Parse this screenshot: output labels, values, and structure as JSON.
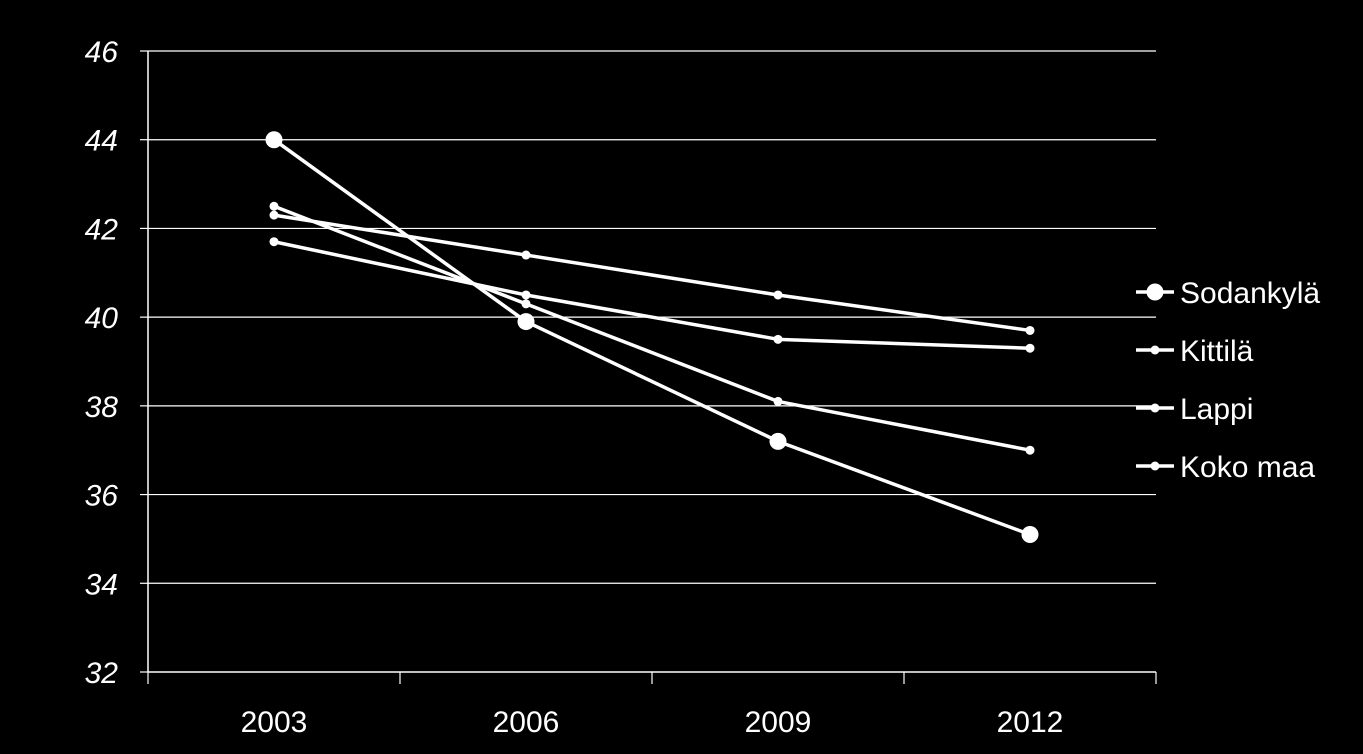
{
  "chart_data": {
    "type": "line",
    "title": "",
    "xlabel": "",
    "ylabel": "",
    "categories": [
      "2003",
      "2006",
      "2009",
      "2012"
    ],
    "ylim": [
      32,
      46
    ],
    "yticks": [
      "32",
      "34",
      "36",
      "38",
      "40",
      "42",
      "44",
      "46"
    ],
    "grid": "horizontal",
    "legend_position": "right",
    "series": [
      {
        "name": "Sodankylä",
        "values": [
          44.0,
          39.9,
          37.2,
          35.1
        ],
        "marker": "large-circle"
      },
      {
        "name": "Kittilä",
        "values": [
          42.3,
          41.4,
          40.5,
          39.7
        ],
        "marker": "small-circle"
      },
      {
        "name": "Lappi",
        "values": [
          41.7,
          40.5,
          39.5,
          39.3
        ],
        "marker": "small-circle"
      },
      {
        "name": "Koko maa",
        "values": [
          42.5,
          40.3,
          38.1,
          37.0
        ],
        "marker": "small-circle"
      }
    ],
    "colors": {
      "background": "#000000",
      "line": "#ffffff",
      "grid": "#ffffff",
      "text": "#ffffff"
    }
  }
}
